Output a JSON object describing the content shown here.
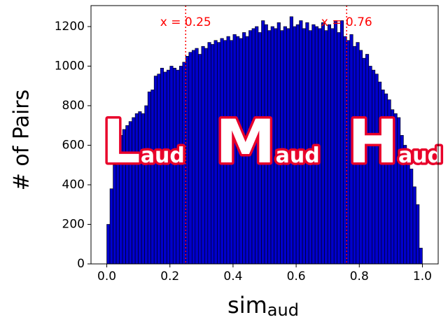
{
  "chart_data": {
    "type": "histogram",
    "xlabel": {
      "main": "sim",
      "sub": "aud"
    },
    "ylabel": "# of Pairs",
    "bins": [
      0,
      0.01,
      0.02,
      0.03,
      0.04,
      0.05,
      0.06,
      0.07,
      0.08,
      0.09,
      0.1,
      0.11,
      0.12,
      0.13,
      0.14,
      0.15,
      0.16,
      0.17,
      0.18,
      0.19,
      0.2,
      0.21,
      0.22,
      0.23,
      0.24,
      0.25,
      0.26,
      0.27,
      0.28,
      0.29,
      0.3,
      0.31,
      0.32,
      0.33,
      0.34,
      0.35,
      0.36,
      0.37,
      0.38,
      0.39,
      0.4,
      0.41,
      0.42,
      0.43,
      0.44,
      0.45,
      0.46,
      0.47,
      0.48,
      0.49,
      0.5,
      0.51,
      0.52,
      0.53,
      0.54,
      0.55,
      0.56,
      0.57,
      0.58,
      0.59,
      0.6,
      0.61,
      0.62,
      0.63,
      0.64,
      0.65,
      0.66,
      0.67,
      0.68,
      0.69,
      0.7,
      0.71,
      0.72,
      0.73,
      0.74,
      0.75,
      0.76,
      0.77,
      0.78,
      0.79,
      0.8,
      0.81,
      0.82,
      0.83,
      0.84,
      0.85,
      0.86,
      0.87,
      0.88,
      0.89,
      0.9,
      0.91,
      0.92,
      0.93,
      0.94,
      0.95,
      0.96,
      0.97,
      0.98,
      0.99,
      1
    ],
    "values": [
      200,
      380,
      500,
      600,
      650,
      680,
      700,
      720,
      740,
      760,
      770,
      760,
      800,
      870,
      880,
      950,
      960,
      990,
      970,
      980,
      1000,
      990,
      980,
      1000,
      1020,
      1050,
      1070,
      1080,
      1090,
      1060,
      1100,
      1090,
      1120,
      1110,
      1130,
      1120,
      1140,
      1130,
      1150,
      1130,
      1160,
      1150,
      1140,
      1170,
      1150,
      1180,
      1190,
      1200,
      1170,
      1230,
      1210,
      1180,
      1200,
      1190,
      1220,
      1180,
      1200,
      1190,
      1250,
      1200,
      1210,
      1230,
      1190,
      1220,
      1180,
      1210,
      1200,
      1190,
      1220,
      1180,
      1210,
      1190,
      1230,
      1170,
      1230,
      1150,
      1130,
      1160,
      1100,
      1120,
      1080,
      1040,
      1060,
      1000,
      980,
      960,
      920,
      880,
      860,
      830,
      780,
      760,
      740,
      650,
      600,
      560,
      480,
      390,
      300,
      80
    ],
    "color": "#0000cc",
    "edgecolor": "#000000",
    "xlim": [
      -0.05,
      1.05
    ],
    "xticks": [
      {
        "value": 0,
        "label": "0.0"
      },
      0.2,
      0.4,
      0.6,
      0.8,
      {
        "value": 1,
        "label": "1.0"
      }
    ],
    "ylim": [
      0,
      1306
    ],
    "yticks": [
      0,
      200,
      400,
      600,
      800,
      1000,
      1200
    ],
    "vlines": [
      {
        "x": 0.25,
        "label": "x = 0.25"
      },
      {
        "x": 0.76,
        "label": "x = 0.76"
      }
    ],
    "vline_color": "#ff0000",
    "regions": [
      {
        "main": "L",
        "sub": "aud"
      },
      {
        "main": "M",
        "sub": "aud"
      },
      {
        "main": "H",
        "sub": "aud"
      }
    ]
  }
}
